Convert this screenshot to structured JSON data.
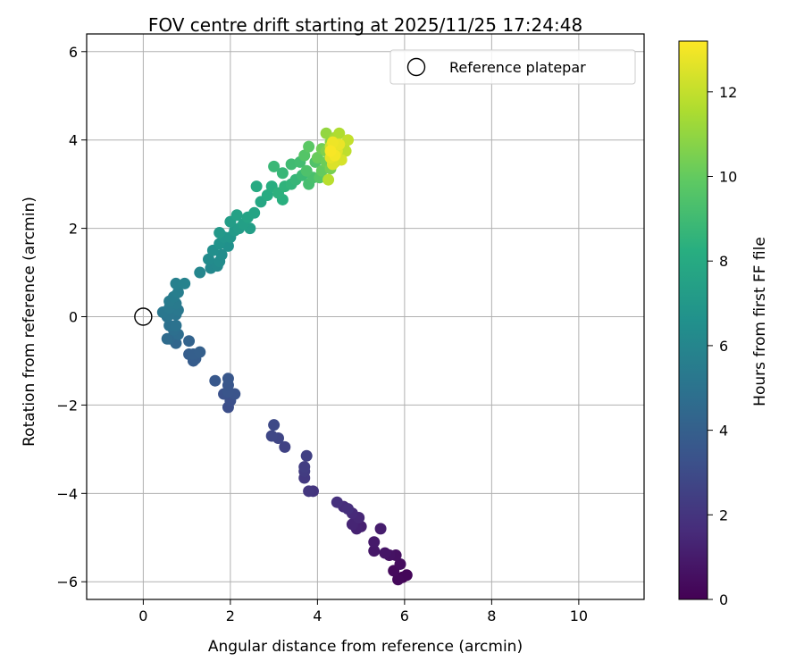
{
  "chart_data": {
    "type": "scatter",
    "title": "FOV centre drift starting at 2025/11/25 17:24:48",
    "xlabel": "Angular distance from reference (arcmin)",
    "ylabel": "Rotation from reference (arcmin)",
    "xlim": [
      -1.3,
      11.5
    ],
    "ylim": [
      -6.4,
      6.4
    ],
    "xticks": [
      0,
      2,
      4,
      6,
      8,
      10
    ],
    "yticks": [
      -6,
      -4,
      -2,
      0,
      2,
      4,
      6
    ],
    "xtick_labels": [
      "0",
      "2",
      "4",
      "6",
      "8",
      "10"
    ],
    "ytick_labels": [
      "−6",
      "−4",
      "−2",
      "0",
      "2",
      "4",
      "6"
    ],
    "grid": true,
    "legend": {
      "position": "top-right",
      "entries": [
        "Reference platepar"
      ]
    },
    "reference_point": {
      "x": 0,
      "y": 0
    },
    "colorbar": {
      "label": "Hours from first FF file",
      "colormap": "viridis",
      "range": [
        0,
        13.2
      ],
      "ticks": [
        0,
        2,
        4,
        6,
        8,
        10,
        12
      ],
      "tick_labels": [
        "0",
        "2",
        "4",
        "6",
        "8",
        "10",
        "12"
      ]
    },
    "series": [
      {
        "points": [
          {
            "x": 5.95,
            "y": -5.9,
            "t": 0.1
          },
          {
            "x": 6.05,
            "y": -5.85,
            "t": 0.2
          },
          {
            "x": 5.85,
            "y": -5.95,
            "t": 0.25
          },
          {
            "x": 5.75,
            "y": -5.75,
            "t": 0.35
          },
          {
            "x": 5.9,
            "y": -5.6,
            "t": 0.45
          },
          {
            "x": 5.8,
            "y": -5.4,
            "t": 0.55
          },
          {
            "x": 5.65,
            "y": -5.4,
            "t": 0.65
          },
          {
            "x": 5.55,
            "y": -5.35,
            "t": 0.75
          },
          {
            "x": 5.3,
            "y": -5.3,
            "t": 0.85
          },
          {
            "x": 5.3,
            "y": -5.1,
            "t": 0.95
          },
          {
            "x": 5.45,
            "y": -4.8,
            "t": 1.05
          },
          {
            "x": 5.0,
            "y": -4.75,
            "t": 1.15
          },
          {
            "x": 4.9,
            "y": -4.8,
            "t": 1.25
          },
          {
            "x": 4.8,
            "y": -4.7,
            "t": 1.35
          },
          {
            "x": 4.95,
            "y": -4.55,
            "t": 1.45
          },
          {
            "x": 4.8,
            "y": -4.45,
            "t": 1.55
          },
          {
            "x": 4.6,
            "y": -4.3,
            "t": 1.65
          },
          {
            "x": 4.7,
            "y": -4.35,
            "t": 1.75
          },
          {
            "x": 4.45,
            "y": -4.2,
            "t": 1.85
          },
          {
            "x": 3.9,
            "y": -3.95,
            "t": 2.0
          },
          {
            "x": 3.8,
            "y": -3.95,
            "t": 2.1
          },
          {
            "x": 3.7,
            "y": -3.65,
            "t": 2.2
          },
          {
            "x": 3.7,
            "y": -3.5,
            "t": 2.3
          },
          {
            "x": 3.7,
            "y": -3.4,
            "t": 2.4
          },
          {
            "x": 3.75,
            "y": -3.15,
            "t": 2.5
          },
          {
            "x": 3.25,
            "y": -2.95,
            "t": 2.6
          },
          {
            "x": 3.1,
            "y": -2.75,
            "t": 2.7
          },
          {
            "x": 2.95,
            "y": -2.7,
            "t": 2.8
          },
          {
            "x": 3.0,
            "y": -2.45,
            "t": 2.9
          },
          {
            "x": 1.95,
            "y": -2.05,
            "t": 3.1
          },
          {
            "x": 2.0,
            "y": -1.9,
            "t": 3.2
          },
          {
            "x": 1.85,
            "y": -1.75,
            "t": 3.3
          },
          {
            "x": 2.1,
            "y": -1.75,
            "t": 3.4
          },
          {
            "x": 1.95,
            "y": -1.7,
            "t": 3.45
          },
          {
            "x": 1.95,
            "y": -1.55,
            "t": 3.5
          },
          {
            "x": 1.95,
            "y": -1.4,
            "t": 3.55
          },
          {
            "x": 1.65,
            "y": -1.45,
            "t": 3.6
          },
          {
            "x": 1.15,
            "y": -1.0,
            "t": 3.8
          },
          {
            "x": 1.2,
            "y": -0.95,
            "t": 3.85
          },
          {
            "x": 1.05,
            "y": -0.85,
            "t": 3.9
          },
          {
            "x": 1.15,
            "y": -0.85,
            "t": 3.95
          },
          {
            "x": 1.3,
            "y": -0.8,
            "t": 4.0
          },
          {
            "x": 1.05,
            "y": -0.55,
            "t": 4.2
          },
          {
            "x": 0.75,
            "y": -0.6,
            "t": 4.35
          },
          {
            "x": 0.6,
            "y": -0.5,
            "t": 4.5
          },
          {
            "x": 0.55,
            "y": -0.5,
            "t": 4.6
          },
          {
            "x": 0.8,
            "y": -0.4,
            "t": 4.7
          },
          {
            "x": 0.7,
            "y": -0.3,
            "t": 4.8
          },
          {
            "x": 0.6,
            "y": -0.2,
            "t": 4.9
          },
          {
            "x": 0.75,
            "y": -0.2,
            "t": 4.95
          },
          {
            "x": 0.55,
            "y": 0.0,
            "t": 5.0
          },
          {
            "x": 0.75,
            "y": 0.05,
            "t": 5.1
          },
          {
            "x": 0.6,
            "y": 0.05,
            "t": 5.15
          },
          {
            "x": 0.45,
            "y": 0.1,
            "t": 5.2
          },
          {
            "x": 0.8,
            "y": 0.15,
            "t": 5.25
          },
          {
            "x": 0.6,
            "y": 0.2,
            "t": 5.3
          },
          {
            "x": 0.75,
            "y": 0.3,
            "t": 5.4
          },
          {
            "x": 0.6,
            "y": 0.35,
            "t": 5.45
          },
          {
            "x": 0.7,
            "y": 0.45,
            "t": 5.5
          },
          {
            "x": 0.8,
            "y": 0.55,
            "t": 5.6
          },
          {
            "x": 0.75,
            "y": 0.75,
            "t": 5.7
          },
          {
            "x": 0.95,
            "y": 0.75,
            "t": 5.8
          },
          {
            "x": 1.3,
            "y": 1.0,
            "t": 6.0
          },
          {
            "x": 1.55,
            "y": 1.1,
            "t": 6.1
          },
          {
            "x": 1.7,
            "y": 1.15,
            "t": 6.2
          },
          {
            "x": 1.5,
            "y": 1.3,
            "t": 6.3
          },
          {
            "x": 1.75,
            "y": 1.25,
            "t": 6.35
          },
          {
            "x": 1.8,
            "y": 1.4,
            "t": 6.4
          },
          {
            "x": 1.6,
            "y": 1.5,
            "t": 6.5
          },
          {
            "x": 1.95,
            "y": 1.6,
            "t": 6.6
          },
          {
            "x": 1.75,
            "y": 1.65,
            "t": 6.7
          },
          {
            "x": 1.85,
            "y": 1.8,
            "t": 6.8
          },
          {
            "x": 2.0,
            "y": 1.8,
            "t": 6.9
          },
          {
            "x": 1.75,
            "y": 1.9,
            "t": 7.0
          },
          {
            "x": 2.1,
            "y": 1.95,
            "t": 7.1
          },
          {
            "x": 2.2,
            "y": 2.0,
            "t": 7.2
          },
          {
            "x": 2.0,
            "y": 2.15,
            "t": 7.3
          },
          {
            "x": 2.45,
            "y": 2.0,
            "t": 7.35
          },
          {
            "x": 2.3,
            "y": 2.1,
            "t": 7.4
          },
          {
            "x": 2.15,
            "y": 2.3,
            "t": 7.5
          },
          {
            "x": 2.4,
            "y": 2.25,
            "t": 7.6
          },
          {
            "x": 2.55,
            "y": 2.35,
            "t": 7.7
          },
          {
            "x": 2.7,
            "y": 2.6,
            "t": 7.8
          },
          {
            "x": 2.6,
            "y": 2.95,
            "t": 8.0
          },
          {
            "x": 2.85,
            "y": 2.75,
            "t": 8.1
          },
          {
            "x": 2.95,
            "y": 2.95,
            "t": 8.2
          },
          {
            "x": 3.2,
            "y": 2.65,
            "t": 8.3
          },
          {
            "x": 3.1,
            "y": 2.8,
            "t": 8.4
          },
          {
            "x": 3.25,
            "y": 2.95,
            "t": 8.5
          },
          {
            "x": 3.4,
            "y": 3.0,
            "t": 8.6
          },
          {
            "x": 3.5,
            "y": 3.1,
            "t": 8.7
          },
          {
            "x": 3.2,
            "y": 3.25,
            "t": 8.75
          },
          {
            "x": 3.0,
            "y": 3.4,
            "t": 8.8
          },
          {
            "x": 3.65,
            "y": 3.2,
            "t": 8.9
          },
          {
            "x": 3.4,
            "y": 3.45,
            "t": 9.0
          },
          {
            "x": 3.6,
            "y": 3.5,
            "t": 9.1
          },
          {
            "x": 3.8,
            "y": 3.0,
            "t": 9.2
          },
          {
            "x": 3.9,
            "y": 3.15,
            "t": 9.3
          },
          {
            "x": 3.75,
            "y": 3.3,
            "t": 9.4
          },
          {
            "x": 3.95,
            "y": 3.5,
            "t": 9.5
          },
          {
            "x": 3.7,
            "y": 3.65,
            "t": 9.6
          },
          {
            "x": 4.05,
            "y": 3.15,
            "t": 9.7
          },
          {
            "x": 3.8,
            "y": 3.85,
            "t": 9.8
          },
          {
            "x": 4.1,
            "y": 3.3,
            "t": 10.0
          },
          {
            "x": 4.0,
            "y": 3.6,
            "t": 10.1
          },
          {
            "x": 4.2,
            "y": 3.5,
            "t": 10.2
          },
          {
            "x": 4.1,
            "y": 3.8,
            "t": 10.3
          },
          {
            "x": 4.3,
            "y": 3.35,
            "t": 10.4
          },
          {
            "x": 4.2,
            "y": 3.75,
            "t": 10.6
          },
          {
            "x": 4.3,
            "y": 3.95,
            "t": 10.8
          },
          {
            "x": 4.2,
            "y": 4.15,
            "t": 11.0
          },
          {
            "x": 4.5,
            "y": 3.7,
            "t": 11.2
          },
          {
            "x": 4.4,
            "y": 4.05,
            "t": 11.4
          },
          {
            "x": 4.6,
            "y": 3.9,
            "t": 11.5
          },
          {
            "x": 4.5,
            "y": 4.15,
            "t": 11.6
          },
          {
            "x": 4.25,
            "y": 3.1,
            "t": 11.8
          },
          {
            "x": 4.65,
            "y": 3.75,
            "t": 11.9
          },
          {
            "x": 4.7,
            "y": 4.0,
            "t": 12.0
          },
          {
            "x": 4.4,
            "y": 3.5,
            "t": 12.2
          },
          {
            "x": 4.3,
            "y": 3.85,
            "t": 12.3
          },
          {
            "x": 4.55,
            "y": 3.55,
            "t": 12.4
          },
          {
            "x": 4.35,
            "y": 3.45,
            "t": 12.5
          },
          {
            "x": 4.45,
            "y": 3.75,
            "t": 12.6
          },
          {
            "x": 4.3,
            "y": 3.6,
            "t": 12.7
          },
          {
            "x": 4.5,
            "y": 3.9,
            "t": 12.8
          },
          {
            "x": 4.35,
            "y": 3.95,
            "t": 12.9
          },
          {
            "x": 4.4,
            "y": 3.65,
            "t": 13.0
          },
          {
            "x": 4.3,
            "y": 3.75,
            "t": 13.1
          }
        ]
      }
    ]
  }
}
